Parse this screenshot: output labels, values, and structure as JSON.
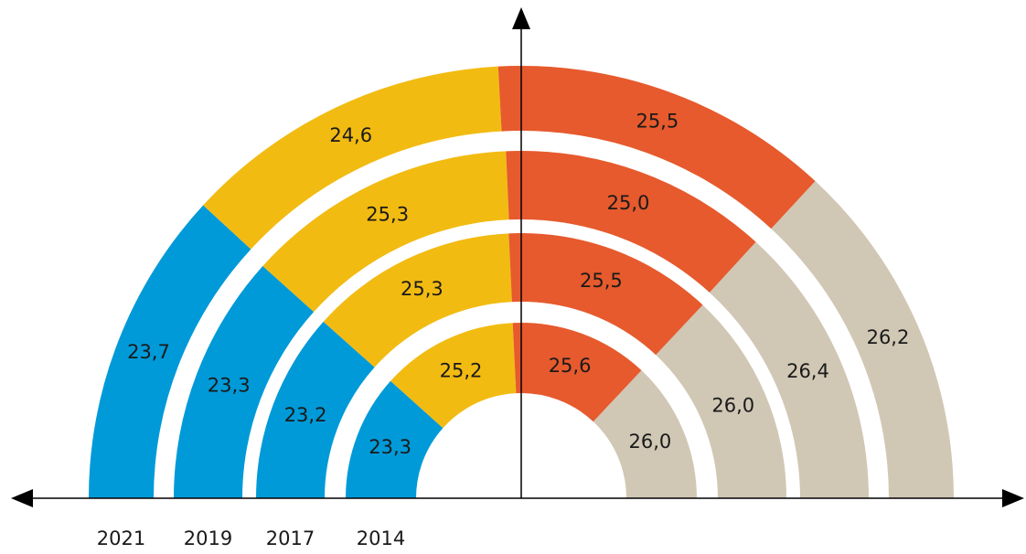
{
  "chart_data": {
    "type": "rings",
    "categories": [
      "2021",
      "2019",
      "2017",
      "2014"
    ],
    "series": [
      {
        "color": "#009ad8",
        "values": [
          23.7,
          23.3,
          23.2,
          23.3
        ],
        "value_labels": [
          "23,7",
          "23,3",
          "23,2",
          "23,3"
        ]
      },
      {
        "color": "#f2bb12",
        "values": [
          24.6,
          25.3,
          25.3,
          25.2
        ],
        "value_labels": [
          "24,6",
          "25,3",
          "25,3",
          "25,2"
        ]
      },
      {
        "color": "#e65a2d",
        "values": [
          25.5,
          25.0,
          25.5,
          25.6
        ],
        "value_labels": [
          "25,5",
          "25,0",
          "25,5",
          "25,6"
        ]
      },
      {
        "color": "#d0c7b5",
        "values": [
          26.2,
          26.4,
          26.0,
          26.0
        ],
        "value_labels": [
          "26,2",
          "26,4",
          "26,0",
          "26,0"
        ]
      }
    ]
  }
}
